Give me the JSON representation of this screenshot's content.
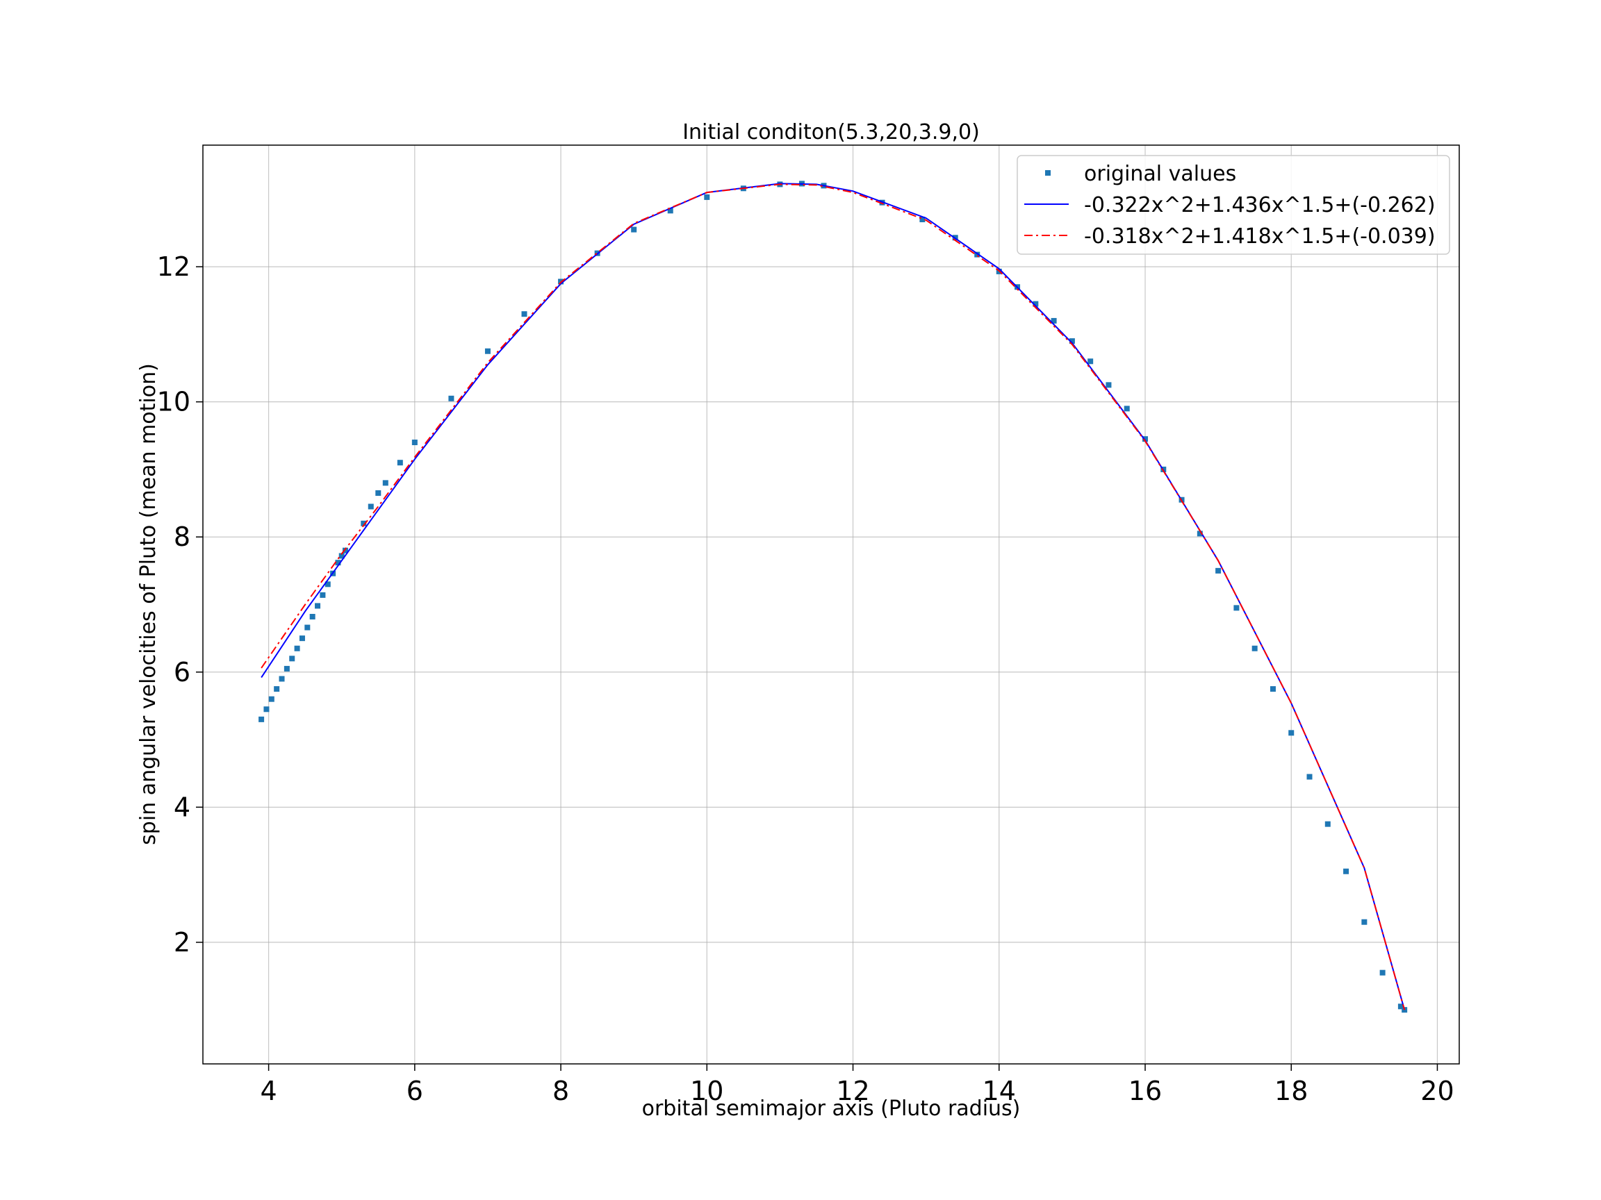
{
  "chart_data": {
    "type": "scatter",
    "title": "Initial conditon(5.3,20,3.9,0)",
    "xlabel": "orbital semimajor axis (Pluto radius)",
    "ylabel": "spin angular velocities of Pluto (mean motion)",
    "xlim": [
      3.1,
      20.3
    ],
    "ylim": [
      0.2,
      13.8
    ],
    "xticks": [
      4,
      6,
      8,
      10,
      12,
      14,
      16,
      18,
      20
    ],
    "yticks": [
      2,
      4,
      6,
      8,
      10,
      12
    ],
    "grid": true,
    "legend_position": "top-right",
    "series": [
      {
        "name": "original values",
        "kind": "markers",
        "color": "#1f77b4",
        "x": [
          3.9,
          3.97,
          4.04,
          4.11,
          4.18,
          4.25,
          4.32,
          4.39,
          4.46,
          4.53,
          4.6,
          4.67,
          4.74,
          4.81,
          4.88,
          4.95,
          5.0,
          5.05,
          5.3,
          5.4,
          5.5,
          5.6,
          5.8,
          6.0,
          6.5,
          7.0,
          7.5,
          8.0,
          8.5,
          9.0,
          9.5,
          10.0,
          10.5,
          11.0,
          11.3,
          11.6,
          12.4,
          12.95,
          13.4,
          13.7,
          14.0,
          14.25,
          14.5,
          14.75,
          15.0,
          15.25,
          15.5,
          15.75,
          16.0,
          16.25,
          16.5,
          16.75,
          17.0,
          17.25,
          17.5,
          17.75,
          18.0,
          18.25,
          18.5,
          18.75,
          19.0,
          19.25,
          19.5,
          19.55
        ],
        "y": [
          5.3,
          5.45,
          5.6,
          5.75,
          5.9,
          6.05,
          6.2,
          6.35,
          6.5,
          6.66,
          6.82,
          6.98,
          7.14,
          7.3,
          7.46,
          7.62,
          7.72,
          7.8,
          8.2,
          8.45,
          8.65,
          8.8,
          9.1,
          9.4,
          10.05,
          10.75,
          11.3,
          11.78,
          12.2,
          12.55,
          12.83,
          13.03,
          13.16,
          13.22,
          13.23,
          13.2,
          12.95,
          12.7,
          12.43,
          12.18,
          11.93,
          11.7,
          11.45,
          11.2,
          10.9,
          10.6,
          10.25,
          9.9,
          9.45,
          9.0,
          8.55,
          8.05,
          7.5,
          6.95,
          6.35,
          5.75,
          5.1,
          4.45,
          3.75,
          3.05,
          2.3,
          1.55,
          1.05,
          1.0
        ]
      },
      {
        "name": "-0.322x^2+1.436x^1.5+(-0.262)",
        "kind": "line",
        "color": "#0000ff",
        "dash": "solid",
        "x": [
          3.9,
          4.5,
          5.0,
          5.5,
          6.0,
          7.0,
          8.0,
          9.0,
          10.0,
          11.0,
          11.5,
          12.0,
          13.0,
          14.0,
          15.0,
          16.0,
          17.0,
          18.0,
          19.0,
          19.55
        ],
        "y": [
          5.92,
          6.9,
          7.65,
          8.4,
          9.15,
          10.55,
          11.75,
          12.63,
          13.1,
          13.23,
          13.22,
          13.12,
          12.72,
          11.97,
          10.87,
          9.43,
          7.65,
          5.54,
          3.1,
          1.0
        ]
      },
      {
        "name": "-0.318x^2+1.418x^1.5+(-0.039)",
        "kind": "line",
        "color": "#ff0000",
        "dash": "dashdot",
        "x": [
          3.9,
          4.5,
          5.0,
          5.5,
          6.0,
          7.0,
          8.0,
          9.0,
          10.0,
          11.0,
          11.5,
          12.0,
          13.0,
          14.0,
          15.0,
          16.0,
          17.0,
          18.0,
          19.0,
          19.55
        ],
        "y": [
          6.06,
          7.0,
          7.75,
          8.45,
          9.18,
          10.58,
          11.77,
          12.64,
          13.1,
          13.22,
          13.21,
          13.1,
          12.69,
          11.94,
          10.85,
          9.42,
          7.65,
          5.54,
          3.1,
          1.0
        ]
      }
    ]
  }
}
